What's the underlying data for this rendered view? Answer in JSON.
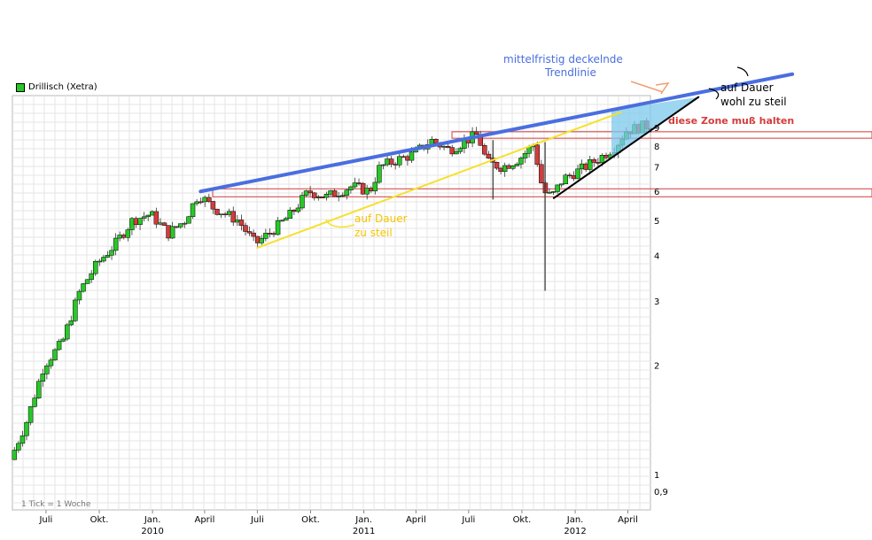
{
  "chart_data": {
    "type": "candlestick",
    "title": "Drillisch (Xetra)",
    "tick_note": "1 Tick = 1 Woche",
    "y_scale": "log",
    "ylim": [
      0.8,
      11
    ],
    "y_ticks": [
      {
        "value": 0.9,
        "label": "0,9"
      },
      {
        "value": 1,
        "label": "1"
      },
      {
        "value": 2,
        "label": "2"
      },
      {
        "value": 3,
        "label": "3"
      },
      {
        "value": 4,
        "label": "4"
      },
      {
        "value": 5,
        "label": "5"
      },
      {
        "value": 6,
        "label": "6"
      },
      {
        "value": 7,
        "label": "7"
      },
      {
        "value": 8,
        "label": "8"
      },
      {
        "value": 9,
        "label": "9"
      }
    ],
    "x_start": "2009-05-04",
    "x_end": "2012-05-10",
    "x_ticks": [
      {
        "date": "2009-07-01",
        "label": "Juli"
      },
      {
        "date": "2009-10-01",
        "label": "Okt."
      },
      {
        "date": "2010-01-01",
        "label": "Jan.",
        "year": "2010"
      },
      {
        "date": "2010-04-01",
        "label": "April"
      },
      {
        "date": "2010-07-01",
        "label": "Juli"
      },
      {
        "date": "2010-10-01",
        "label": "Okt."
      },
      {
        "date": "2011-01-01",
        "label": "Jan.",
        "year": "2011"
      },
      {
        "date": "2011-04-01",
        "label": "April"
      },
      {
        "date": "2011-07-01",
        "label": "Juli"
      },
      {
        "date": "2011-10-01",
        "label": "Okt."
      },
      {
        "date": "2012-01-01",
        "label": "Jan.",
        "year": "2012"
      },
      {
        "date": "2012-04-01",
        "label": "April"
      }
    ],
    "price_anchors": [
      {
        "date": "2009-05-04",
        "value": 1.1
      },
      {
        "date": "2009-06-01",
        "value": 1.4
      },
      {
        "date": "2009-07-01",
        "value": 2.0
      },
      {
        "date": "2009-08-01",
        "value": 2.3
      },
      {
        "date": "2009-09-01",
        "value": 3.2
      },
      {
        "date": "2009-10-01",
        "value": 3.8
      },
      {
        "date": "2009-11-01",
        "value": 4.3
      },
      {
        "date": "2009-12-01",
        "value": 5.0
      },
      {
        "date": "2010-01-01",
        "value": 5.2
      },
      {
        "date": "2010-02-01",
        "value": 4.6
      },
      {
        "date": "2010-03-01",
        "value": 5.0
      },
      {
        "date": "2010-03-25",
        "value": 5.9
      },
      {
        "date": "2010-04-20",
        "value": 5.4
      },
      {
        "date": "2010-06-01",
        "value": 5.0
      },
      {
        "date": "2010-07-01",
        "value": 4.3
      },
      {
        "date": "2010-08-01",
        "value": 4.7
      },
      {
        "date": "2010-09-01",
        "value": 5.2
      },
      {
        "date": "2010-10-01",
        "value": 6.0
      },
      {
        "date": "2010-11-01",
        "value": 5.8
      },
      {
        "date": "2010-12-15",
        "value": 6.2
      },
      {
        "date": "2011-01-15",
        "value": 6.0
      },
      {
        "date": "2011-02-01",
        "value": 7.0
      },
      {
        "date": "2011-03-01",
        "value": 7.3
      },
      {
        "date": "2011-04-01",
        "value": 7.6
      },
      {
        "date": "2011-05-01",
        "value": 8.3
      },
      {
        "date": "2011-06-01",
        "value": 7.8
      },
      {
        "date": "2011-07-01",
        "value": 8.3
      },
      {
        "date": "2011-07-20",
        "value": 8.6
      },
      {
        "date": "2011-08-05",
        "value": 7.2
      },
      {
        "date": "2011-09-01",
        "value": 7.0
      },
      {
        "date": "2011-10-01",
        "value": 7.4
      },
      {
        "date": "2011-10-25",
        "value": 8.1
      },
      {
        "date": "2011-11-10",
        "value": 6.0
      },
      {
        "date": "2011-11-25",
        "value": 5.8
      },
      {
        "date": "2011-12-15",
        "value": 6.5
      },
      {
        "date": "2012-01-15",
        "value": 6.9
      },
      {
        "date": "2012-02-15",
        "value": 7.4
      },
      {
        "date": "2012-03-15",
        "value": 8.0
      },
      {
        "date": "2012-04-01",
        "value": 8.8
      },
      {
        "date": "2012-05-05",
        "value": 9.1
      }
    ],
    "spikes": [
      {
        "date": "2011-08-12",
        "low": 5.7,
        "high": 8.3
      },
      {
        "date": "2011-11-10",
        "low": 3.2,
        "high": 8.2
      }
    ],
    "zones": [
      {
        "label": "diese Zone muß halten",
        "low": 8.4,
        "high": 8.75,
        "color": "#d23c3c"
      },
      {
        "label": "",
        "low": 5.8,
        "high": 6.1,
        "color": "#d23c3c"
      }
    ],
    "trendlines": [
      {
        "name": "mittelfristig deckelnde Trendlinie",
        "color": "#4a6ee0",
        "from": {
          "date": "2010-03-25",
          "value": 6.0
        },
        "to": {
          "date": "2013-01-10",
          "value": 12.6
        }
      },
      {
        "name": "auf Dauer zu steil (gelb)",
        "color": "#f5e12a",
        "from": {
          "date": "2010-07-01",
          "value": 4.2
        },
        "to": {
          "date": "2012-03-20",
          "value": 9.9
        }
      },
      {
        "name": "auf Dauer wohl zu steil (schwarz)",
        "color": "#000000",
        "from": {
          "date": "2011-11-25",
          "value": 5.75
        },
        "to": {
          "date": "2012-08-01",
          "value": 10.9
        }
      }
    ],
    "annotations": [
      {
        "text_lines": [
          "mittelfristig deckelnde",
          "Trendlinie"
        ],
        "color": "#4a6ee0"
      },
      {
        "text_lines": [
          "auf Dauer",
          "zu steil"
        ],
        "color": "#f5c400"
      },
      {
        "text_lines": [
          "auf Dauer",
          "wohl zu steil"
        ],
        "color": "#000000"
      },
      {
        "text_lines": [
          "diese Zone muß halten"
        ],
        "color": "#d23c3c"
      }
    ],
    "up_color": "#28c828",
    "down_color": "#d23c3c",
    "grid": true,
    "legend_position": "top-left"
  }
}
